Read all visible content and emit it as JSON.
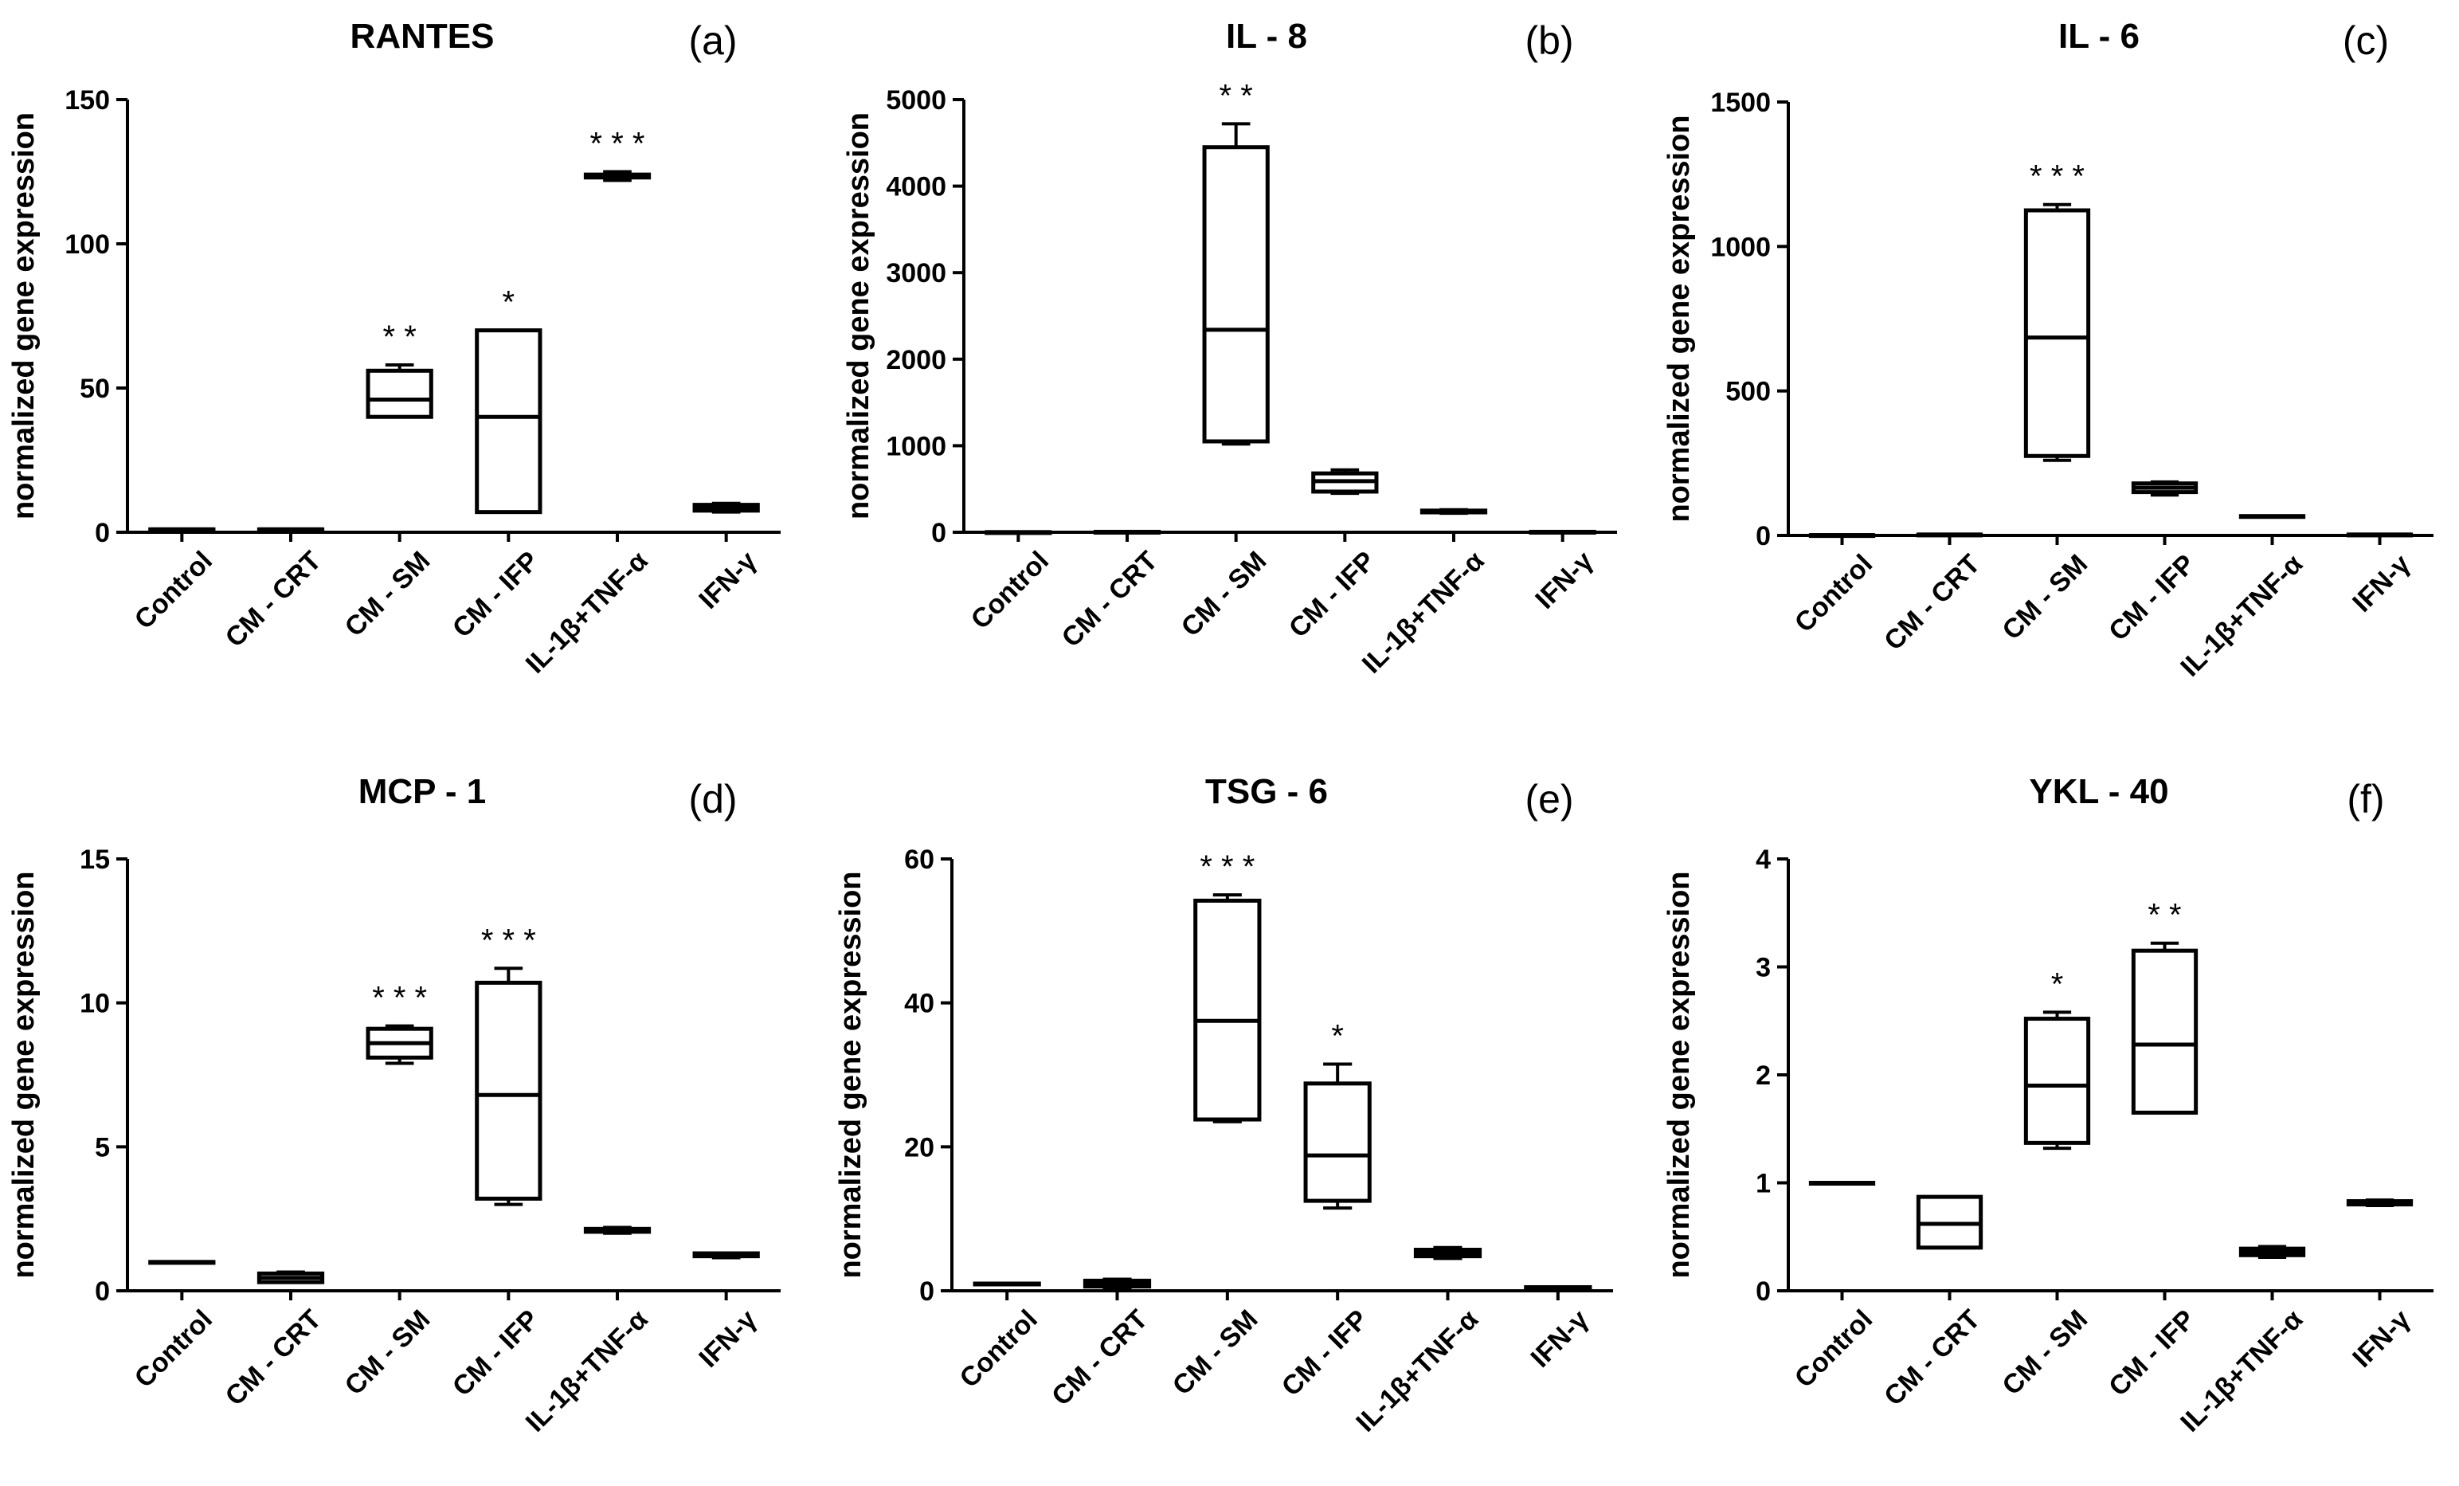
{
  "chart_data": [
    {
      "type": "box",
      "title": "RANTES",
      "panel": "(a)",
      "ylabel": "normalized gene expression",
      "ylim": [
        0,
        150
      ],
      "yticks": [
        "0",
        "50",
        "100",
        "150"
      ],
      "categories": [
        "Control",
        "CM - CRT",
        "CM - SM",
        "CM - IFP",
        "IL-1β+TNF-α",
        "IFN-γ"
      ],
      "boxes": [
        {
          "min": 1,
          "q1": 1,
          "median": 1,
          "q3": 1,
          "max": 1,
          "sig": ""
        },
        {
          "min": 1,
          "q1": 1,
          "median": 1,
          "q3": 1,
          "max": 1,
          "sig": ""
        },
        {
          "min": 40,
          "q1": 40,
          "median": 46,
          "q3": 56,
          "max": 58,
          "sig": "* *"
        },
        {
          "min": 7,
          "q1": 7,
          "median": 40,
          "q3": 70,
          "max": 70,
          "sig": "*"
        },
        {
          "min": 122,
          "q1": 123,
          "median": 123.5,
          "q3": 124,
          "max": 125,
          "sig": "* * *"
        },
        {
          "min": 7,
          "q1": 7.5,
          "median": 8.5,
          "q3": 9.5,
          "max": 10,
          "sig": ""
        }
      ]
    },
    {
      "type": "box",
      "title": "IL - 8",
      "panel": "(b)",
      "ylabel": "normalized gene expression",
      "ylim": [
        0,
        5000
      ],
      "yticks": [
        "0",
        "1000",
        "2000",
        "3000",
        "4000",
        "5000"
      ],
      "categories": [
        "Control",
        "CM - CRT",
        "CM - SM",
        "CM - IFP",
        "IL-1β+TNF-α",
        "IFN-γ"
      ],
      "boxes": [
        {
          "min": 1,
          "q1": 1,
          "median": 1,
          "q3": 1,
          "max": 1,
          "sig": ""
        },
        {
          "min": 5,
          "q1": 5,
          "median": 5,
          "q3": 5,
          "max": 5,
          "sig": ""
        },
        {
          "min": 1020,
          "q1": 1050,
          "median": 2340,
          "q3": 4450,
          "max": 4720,
          "sig": "* *"
        },
        {
          "min": 450,
          "q1": 470,
          "median": 590,
          "q3": 680,
          "max": 720,
          "sig": ""
        },
        {
          "min": 220,
          "q1": 230,
          "median": 240,
          "q3": 250,
          "max": 260,
          "sig": ""
        },
        {
          "min": 5,
          "q1": 5,
          "median": 5,
          "q3": 5,
          "max": 5,
          "sig": ""
        }
      ]
    },
    {
      "type": "box",
      "title": "IL - 6",
      "panel": "(c)",
      "ylabel": "normalized gene expression",
      "ylim": [
        0,
        1500
      ],
      "yticks": [
        "0",
        "500",
        "1000",
        "1500"
      ],
      "categories": [
        "Control",
        "CM - CRT",
        "CM - SM",
        "CM - IFP",
        "IL-1β+TNF-α",
        "IFN-γ"
      ],
      "boxes": [
        {
          "min": 1,
          "q1": 1,
          "median": 1,
          "q3": 1,
          "max": 1,
          "sig": ""
        },
        {
          "min": 3,
          "q1": 3,
          "median": 3,
          "q3": 3,
          "max": 3,
          "sig": ""
        },
        {
          "min": 260,
          "q1": 275,
          "median": 685,
          "q3": 1125,
          "max": 1145,
          "sig": "* * *"
        },
        {
          "min": 140,
          "q1": 150,
          "median": 165,
          "q3": 180,
          "max": 185,
          "sig": ""
        },
        {
          "min": 65,
          "q1": 65,
          "median": 66,
          "q3": 67,
          "max": 67,
          "sig": ""
        },
        {
          "min": 3,
          "q1": 3,
          "median": 3,
          "q3": 3,
          "max": 3,
          "sig": ""
        }
      ]
    },
    {
      "type": "box",
      "title": "MCP - 1",
      "panel": "(d)",
      "ylabel": "normalized gene expression",
      "ylim": [
        0,
        15
      ],
      "yticks": [
        "0",
        "5",
        "10",
        "15"
      ],
      "categories": [
        "Control",
        "CM - CRT",
        "CM - SM",
        "CM - IFP",
        "IL-1β+TNF-α",
        "IFN-γ"
      ],
      "boxes": [
        {
          "min": 1,
          "q1": 1,
          "median": 1,
          "q3": 1,
          "max": 1,
          "sig": ""
        },
        {
          "min": 0.3,
          "q1": 0.3,
          "median": 0.45,
          "q3": 0.6,
          "max": 0.65,
          "sig": ""
        },
        {
          "min": 7.9,
          "q1": 8.1,
          "median": 8.6,
          "q3": 9.1,
          "max": 9.2,
          "sig": "* * *"
        },
        {
          "min": 3.0,
          "q1": 3.2,
          "median": 6.8,
          "q3": 10.7,
          "max": 11.2,
          "sig": "* * *"
        },
        {
          "min": 2.0,
          "q1": 2.05,
          "median": 2.1,
          "q3": 2.15,
          "max": 2.2,
          "sig": ""
        },
        {
          "min": 1.15,
          "q1": 1.2,
          "median": 1.25,
          "q3": 1.3,
          "max": 1.3,
          "sig": ""
        }
      ]
    },
    {
      "type": "box",
      "title": "TSG - 6",
      "panel": "(e)",
      "ylabel": "normalized gene expression",
      "ylim": [
        0,
        60
      ],
      "yticks": [
        "0",
        "20",
        "40",
        "60"
      ],
      "categories": [
        "Control",
        "CM - CRT",
        "CM - SM",
        "CM - IFP",
        "IL-1β+TNF-α",
        "IFN-γ"
      ],
      "boxes": [
        {
          "min": 1,
          "q1": 1,
          "median": 1,
          "q3": 1,
          "max": 1,
          "sig": ""
        },
        {
          "min": 0.4,
          "q1": 0.6,
          "median": 1.0,
          "q3": 1.4,
          "max": 1.6,
          "sig": ""
        },
        {
          "min": 23.5,
          "q1": 23.8,
          "median": 37.5,
          "q3": 54.2,
          "max": 55,
          "sig": "* * *"
        },
        {
          "min": 11.5,
          "q1": 12.5,
          "median": 18.8,
          "q3": 28.8,
          "max": 31.5,
          "sig": "*"
        },
        {
          "min": 4.5,
          "q1": 4.8,
          "median": 5.2,
          "q3": 5.7,
          "max": 6.0,
          "sig": ""
        },
        {
          "min": 0.4,
          "q1": 0.4,
          "median": 0.45,
          "q3": 0.5,
          "max": 0.5,
          "sig": ""
        }
      ]
    },
    {
      "type": "box",
      "title": "YKL - 40",
      "panel": "(f)",
      "ylabel": "normalized gene expression",
      "ylim": [
        0,
        4
      ],
      "yticks": [
        "0",
        "1",
        "2",
        "3",
        "4"
      ],
      "categories": [
        "Control",
        "CM - CRT",
        "CM - SM",
        "CM - IFP",
        "IL-1β+TNF-α",
        "IFN-γ"
      ],
      "boxes": [
        {
          "min": 1.0,
          "q1": 1.0,
          "median": 1.0,
          "q3": 1.0,
          "max": 1.0,
          "sig": ""
        },
        {
          "min": 0.4,
          "q1": 0.4,
          "median": 0.62,
          "q3": 0.87,
          "max": 0.87,
          "sig": ""
        },
        {
          "min": 1.32,
          "q1": 1.37,
          "median": 1.9,
          "q3": 2.52,
          "max": 2.58,
          "sig": "*"
        },
        {
          "min": 1.65,
          "q1": 1.65,
          "median": 2.28,
          "q3": 3.15,
          "max": 3.22,
          "sig": "* *"
        },
        {
          "min": 0.31,
          "q1": 0.33,
          "median": 0.36,
          "q3": 0.39,
          "max": 0.41,
          "sig": ""
        },
        {
          "min": 0.79,
          "q1": 0.8,
          "median": 0.82,
          "q3": 0.83,
          "max": 0.84,
          "sig": ""
        }
      ]
    }
  ]
}
